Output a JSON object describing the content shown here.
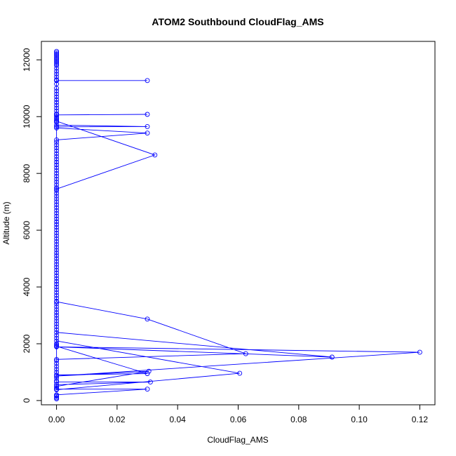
{
  "chart_data": {
    "type": "line",
    "title": "ATOM2 Southbound CloudFlag_AMS",
    "xlabel": "CloudFlag_AMS",
    "ylabel": "Altitude (m)",
    "xlim": [
      -0.005,
      0.125
    ],
    "ylim": [
      -150,
      12650
    ],
    "xticks": [
      0,
      0.02,
      0.04,
      0.06,
      0.08,
      0.1,
      0.12
    ],
    "xtick_labels": [
      "0.00",
      "0.02",
      "0.04",
      "0.06",
      "0.08",
      "0.10",
      "0.12"
    ],
    "yticks": [
      0,
      2000,
      4000,
      6000,
      8000,
      10000,
      12000
    ],
    "ytick_labels": [
      "0",
      "2000",
      "4000",
      "6000",
      "8000",
      "10000",
      "12000"
    ],
    "grid": false,
    "legend": "none",
    "series": [
      {
        "color": "#0000ff",
        "marker": "open-circle",
        "points": [
          [
            0,
            12300
          ],
          [
            0,
            12250
          ],
          [
            0,
            12200
          ],
          [
            0,
            12150
          ],
          [
            0,
            12100
          ],
          [
            0,
            12050
          ],
          [
            0,
            12000
          ],
          [
            0,
            11950
          ],
          [
            0,
            11900
          ],
          [
            0,
            11850
          ],
          [
            0,
            11800
          ],
          [
            0,
            11700
          ],
          [
            0,
            11600
          ],
          [
            0,
            11500
          ],
          [
            0,
            11400
          ],
          [
            0,
            11300
          ],
          [
            0,
            11270
          ],
          [
            0.03,
            11270
          ],
          [
            0,
            11270
          ],
          [
            0,
            11150
          ],
          [
            0,
            11000
          ],
          [
            0,
            10900
          ],
          [
            0,
            10800
          ],
          [
            0,
            10700
          ],
          [
            0,
            10600
          ],
          [
            0,
            10500
          ],
          [
            0,
            10400
          ],
          [
            0,
            10300
          ],
          [
            0,
            10200
          ],
          [
            0,
            10100
          ],
          [
            0,
            10060
          ],
          [
            0.03,
            10080
          ],
          [
            0,
            10060
          ],
          [
            0,
            10000
          ],
          [
            0,
            9950
          ],
          [
            0,
            9900
          ],
          [
            0,
            9840
          ],
          [
            0.0325,
            8650
          ],
          [
            0,
            7450
          ],
          [
            0,
            7400
          ],
          [
            0,
            9850
          ],
          [
            0,
            9800
          ],
          [
            0,
            9700
          ],
          [
            0.03,
            9650
          ],
          [
            0,
            9640
          ],
          [
            0,
            9600
          ],
          [
            0.03,
            9420
          ],
          [
            0,
            9180
          ],
          [
            0,
            9100
          ],
          [
            0,
            9000
          ],
          [
            0,
            8900
          ],
          [
            0,
            8800
          ],
          [
            0,
            8700
          ],
          [
            0,
            8600
          ],
          [
            0,
            8500
          ],
          [
            0,
            8400
          ],
          [
            0,
            8300
          ],
          [
            0,
            8200
          ],
          [
            0,
            8100
          ],
          [
            0,
            8000
          ],
          [
            0,
            7900
          ],
          [
            0,
            7800
          ],
          [
            0,
            7700
          ],
          [
            0,
            7600
          ],
          [
            0,
            7500
          ],
          [
            0,
            7300
          ],
          [
            0,
            7200
          ],
          [
            0,
            7100
          ],
          [
            0,
            7000
          ],
          [
            0,
            6900
          ],
          [
            0,
            6800
          ],
          [
            0,
            6700
          ],
          [
            0,
            6600
          ],
          [
            0,
            6500
          ],
          [
            0,
            6400
          ],
          [
            0,
            6300
          ],
          [
            0,
            6200
          ],
          [
            0,
            6100
          ],
          [
            0,
            6000
          ],
          [
            0,
            5900
          ],
          [
            0,
            5800
          ],
          [
            0,
            5700
          ],
          [
            0,
            5600
          ],
          [
            0,
            5500
          ],
          [
            0,
            5400
          ],
          [
            0,
            5300
          ],
          [
            0,
            5200
          ],
          [
            0,
            5100
          ],
          [
            0,
            5000
          ],
          [
            0,
            4900
          ],
          [
            0,
            4800
          ],
          [
            0,
            4700
          ],
          [
            0,
            4600
          ],
          [
            0,
            4500
          ],
          [
            0,
            4400
          ],
          [
            0,
            4300
          ],
          [
            0,
            4200
          ],
          [
            0,
            4100
          ],
          [
            0,
            4000
          ],
          [
            0,
            3900
          ],
          [
            0,
            3800
          ],
          [
            0,
            3700
          ],
          [
            0,
            3600
          ],
          [
            0,
            3500
          ],
          [
            0,
            3480
          ],
          [
            0.03,
            2870
          ],
          [
            0.0625,
            1650
          ],
          [
            0,
            1450
          ],
          [
            0,
            1400
          ],
          [
            0,
            1300
          ],
          [
            0,
            1200
          ],
          [
            0,
            1100
          ],
          [
            0,
            1000
          ],
          [
            0,
            2400
          ],
          [
            0.091,
            1530
          ],
          [
            0,
            1890
          ],
          [
            0.12,
            1700
          ],
          [
            0,
            860
          ],
          [
            0.0305,
            1030
          ],
          [
            0,
            500
          ],
          [
            0,
            2100
          ],
          [
            0.0605,
            960
          ],
          [
            0,
            380
          ],
          [
            0,
            3400
          ],
          [
            0,
            3300
          ],
          [
            0,
            3200
          ],
          [
            0,
            3100
          ],
          [
            0,
            3000
          ],
          [
            0,
            2900
          ],
          [
            0,
            2800
          ],
          [
            0,
            2700
          ],
          [
            0,
            2600
          ],
          [
            0,
            2500
          ],
          [
            0,
            2300
          ],
          [
            0,
            2200
          ],
          [
            0,
            2000
          ],
          [
            0,
            1950
          ],
          [
            0,
            1910
          ],
          [
            0.03,
            950
          ],
          [
            0,
            900
          ],
          [
            0,
            800
          ],
          [
            0,
            700
          ],
          [
            0,
            650
          ],
          [
            0.031,
            650
          ],
          [
            0,
            560
          ],
          [
            0,
            450
          ],
          [
            0,
            400
          ],
          [
            0.03,
            400
          ],
          [
            0,
            200
          ],
          [
            0,
            180
          ],
          [
            0,
            150
          ],
          [
            0,
            100
          ],
          [
            0,
            60
          ]
        ]
      }
    ]
  }
}
